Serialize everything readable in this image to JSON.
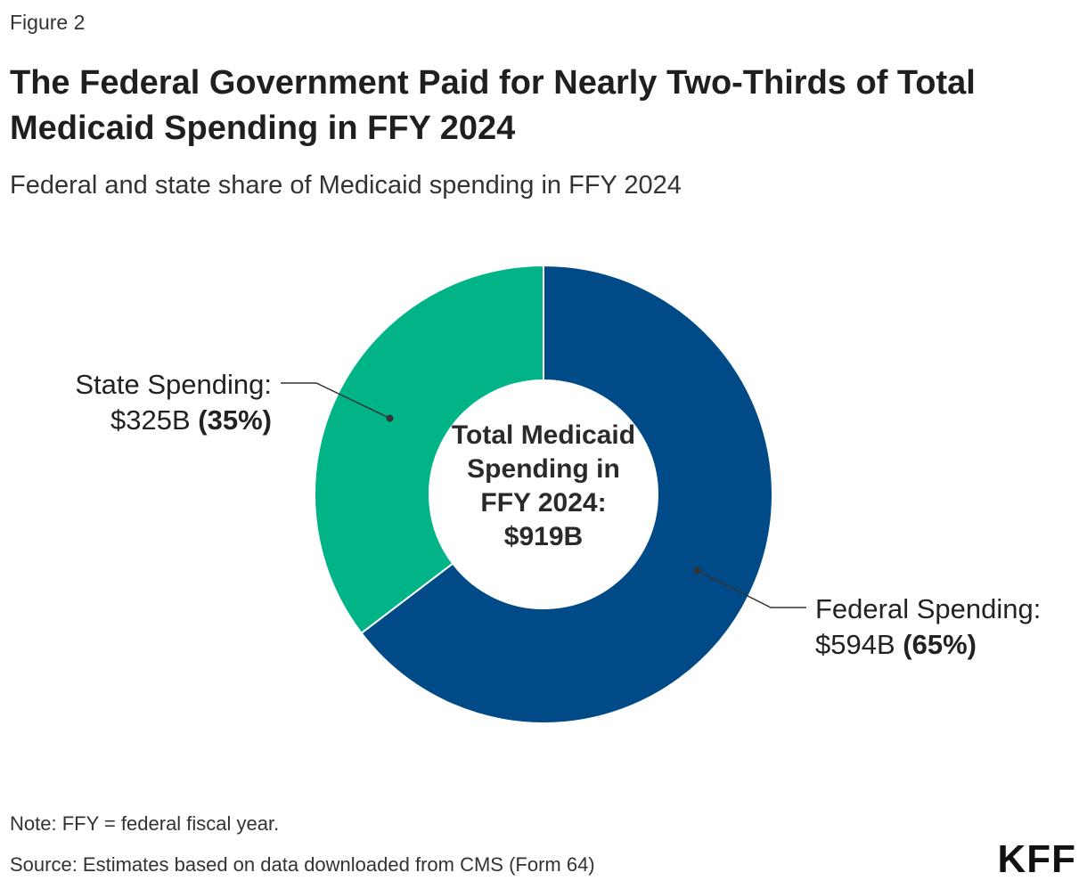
{
  "figure_label": "Figure 2",
  "title": "The Federal Government Paid for Nearly Two-Thirds of Total Medicaid Spending in FFY 2024",
  "subtitle": "Federal and state share of Medicaid spending in FFY 2024",
  "center_label": {
    "line1": "Total Medicaid",
    "line2": "Spending in",
    "line3": "FFY 2024:",
    "line4": "$919B"
  },
  "labels": {
    "state_name": "State Spending:",
    "state_value": "$325B",
    "state_pct": "(35%)",
    "federal_name": "Federal Spending:",
    "federal_value": "$594B",
    "federal_pct": "(65%)"
  },
  "note": "Note: FFY = federal fiscal year.",
  "source": "Source: Estimates based on data downloaded from CMS (Form 64)",
  "logo": "KFF",
  "chart_data": {
    "type": "pie",
    "donut": true,
    "categories": [
      "Federal Spending",
      "State Spending"
    ],
    "values": [
      594,
      325
    ],
    "percents": [
      65,
      35
    ],
    "unit": "$B",
    "total": 919,
    "colors": {
      "federal": "#004a87",
      "state": "#00b488",
      "leader": "#333333"
    }
  }
}
